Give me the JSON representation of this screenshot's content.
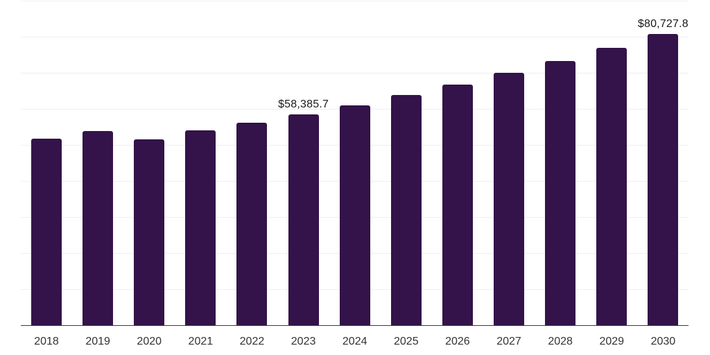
{
  "chart_data": {
    "type": "bar",
    "title": "",
    "xlabel": "",
    "ylabel": "",
    "categories": [
      "2018",
      "2019",
      "2020",
      "2021",
      "2022",
      "2023",
      "2024",
      "2025",
      "2026",
      "2027",
      "2028",
      "2029",
      "2030"
    ],
    "values": [
      51700,
      53800,
      51450,
      53950,
      56000,
      58385.7,
      60950,
      63820,
      66700,
      69950,
      73120,
      76840,
      80727.8
    ],
    "data_labels": {
      "2023": "$58,385.7",
      "2030": "$80,727.8"
    },
    "ylim": [
      0,
      90000
    ],
    "gridline_interval": 10000,
    "grid": "horizontal",
    "legend": "none",
    "colors": {
      "bar": "#331349",
      "axis_line": "#3a3a3a",
      "gridline": "#efefef",
      "data_label_text": "#1a1a1a",
      "tick_label_text": "#333333",
      "background": "#ffffff"
    }
  }
}
